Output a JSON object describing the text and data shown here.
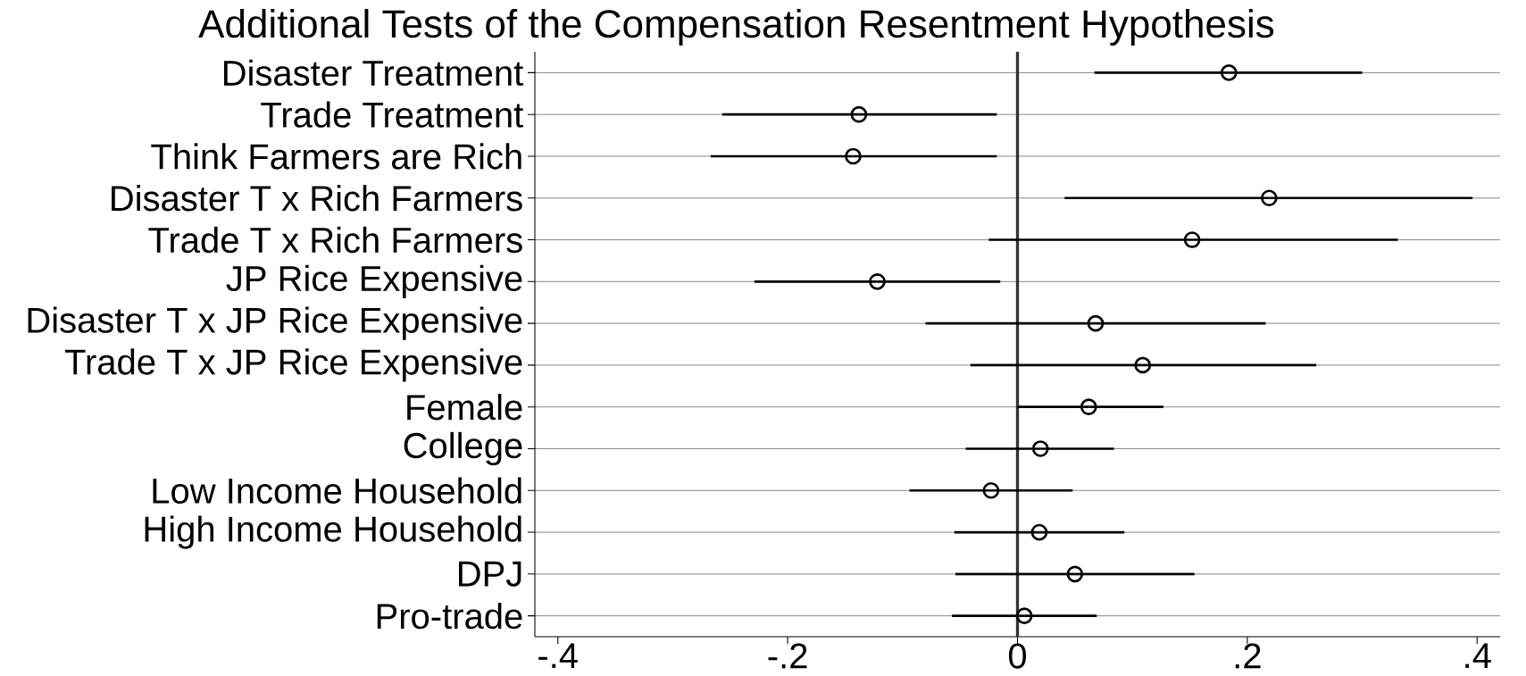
{
  "chart_data": {
    "type": "scatter",
    "orientation": "horizontal",
    "title": "Additional Tests of the Compensation Resentment Hypothesis",
    "categories": [
      "Disaster Treatment",
      "Trade Treatment",
      "Think Farmers are Rich",
      "Disaster T x Rich Farmers",
      "Trade T x Rich Farmers",
      "JP Rice Expensive",
      "Disaster T x JP Rice Expensive",
      "Trade T x JP Rice Expensive",
      "Female",
      "College",
      "Low Income Household",
      "High Income Household",
      "DPJ",
      "Pro-trade"
    ],
    "values": [
      0.184,
      -0.138,
      -0.143,
      0.219,
      0.152,
      -0.122,
      0.068,
      0.109,
      0.062,
      0.02,
      -0.023,
      0.019,
      0.05,
      0.006
    ],
    "errors": [
      [
        0.067,
        0.3
      ],
      [
        -0.257,
        -0.018
      ],
      [
        -0.267,
        -0.018
      ],
      [
        0.041,
        0.396
      ],
      [
        -0.025,
        0.331
      ],
      [
        -0.229,
        -0.015
      ],
      [
        -0.08,
        0.216
      ],
      [
        -0.041,
        0.26
      ],
      [
        0.0,
        0.127
      ],
      [
        -0.045,
        0.084
      ],
      [
        -0.094,
        0.048
      ],
      [
        -0.055,
        0.093
      ],
      [
        -0.054,
        0.154
      ],
      [
        -0.057,
        0.069
      ]
    ],
    "color": "#000000",
    "xlim": [
      -0.42,
      0.42
    ],
    "xticks": [
      {
        "value": -0.4,
        "label": "-.4"
      },
      {
        "value": -0.2,
        "label": "-.2"
      },
      0,
      {
        "value": 0.2,
        "label": ".2"
      },
      {
        "value": 0.4,
        "label": ".4"
      }
    ],
    "ref_lines": [
      {
        "axis": "x",
        "value": 0,
        "color": "#333333"
      }
    ],
    "grid": "y",
    "marker": "circle"
  }
}
